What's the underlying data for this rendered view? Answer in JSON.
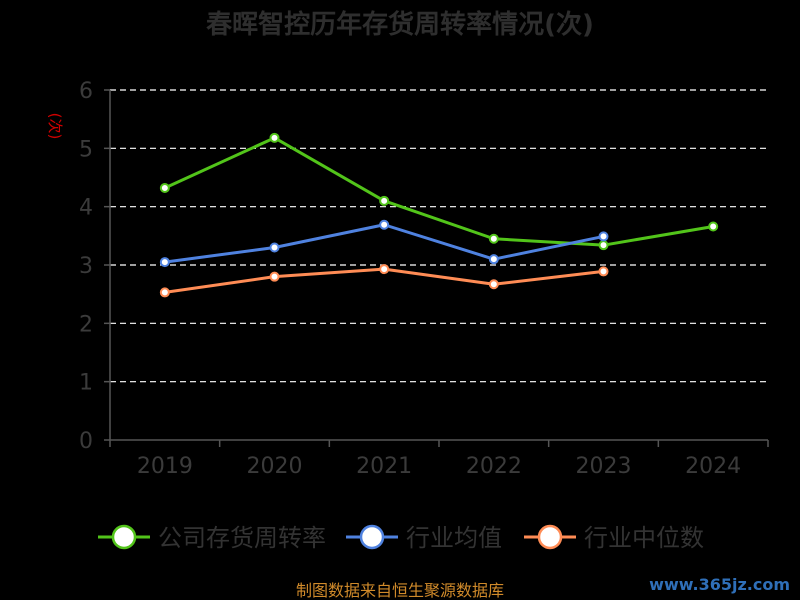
{
  "chart_data": {
    "type": "line",
    "title": "春晖智控历年存货周转率情况(次)",
    "ylabel": "(次)",
    "xlabel": "",
    "categories": [
      "2019",
      "2020",
      "2021",
      "2022",
      "2023",
      "2024"
    ],
    "ylim": [
      0,
      6
    ],
    "yticks": [
      0,
      1,
      2,
      3,
      4,
      5,
      6
    ],
    "grid": true,
    "legend_position": "bottom",
    "series": [
      {
        "name": "公司存货周转率",
        "color": "#52c41a",
        "values": [
          4.32,
          5.18,
          4.1,
          3.45,
          3.34,
          3.66
        ]
      },
      {
        "name": "行业均值",
        "color": "#4f82e0",
        "values": [
          3.05,
          3.3,
          3.69,
          3.1,
          3.49,
          null
        ]
      },
      {
        "name": "行业中位数",
        "color": "#ff8c55",
        "values": [
          2.53,
          2.8,
          2.93,
          2.67,
          2.89,
          null
        ]
      }
    ]
  },
  "footer": {
    "source": "制图数据来自恒生聚源数据库",
    "watermark": "www.365jz.com"
  }
}
